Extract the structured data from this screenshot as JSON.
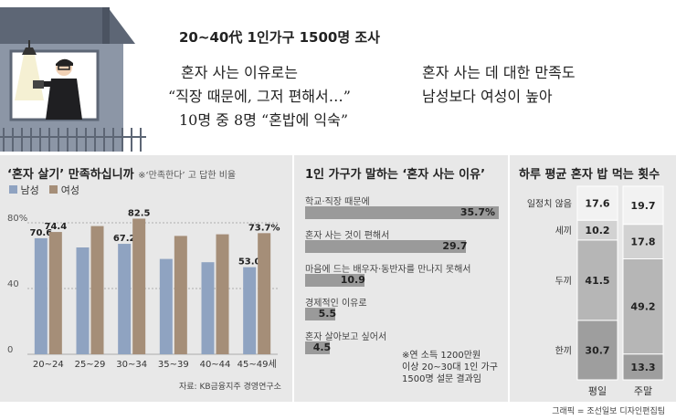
{
  "headline": "20~40代 1인가구 1500명 조사",
  "quotes": {
    "left_line1": "혼자 사는 이유로는",
    "left_line2": "“직장 때문에, 그저 편해서…”",
    "left_line3": "10명 중 8명 “혼밥에 익숙”",
    "right_line1": "혼자 사는 데 대한 만족도",
    "right_line2": "남성보다 여성이 높아"
  },
  "chart_data": [
    {
      "type": "bar",
      "title": "‘혼자 살기’ 만족하십니까",
      "subtitle": "※‘만족한다’ 고 답한 비율",
      "categories": [
        "20~24",
        "25~29",
        "30~34",
        "35~39",
        "40~44",
        "45~49세"
      ],
      "series": [
        {
          "name": "남성",
          "color": "#8fa3c1",
          "values": [
            70.6,
            65,
            67.2,
            58,
            56,
            53.0
          ]
        },
        {
          "name": "여성",
          "color": "#a58e78",
          "values": [
            74.4,
            78,
            82.5,
            72,
            73,
            73.7
          ]
        }
      ],
      "labels": {
        "남성": [
          "70.6",
          "",
          "67.2",
          "",
          "",
          "53.0"
        ],
        "여성": [
          "74.4",
          "",
          "82.5",
          "",
          "",
          "73.7%"
        ]
      },
      "yticks": [
        "0",
        "40",
        "80%"
      ],
      "ylim": [
        0,
        90
      ],
      "source": "자료: KB금융지주 경영연구소"
    },
    {
      "type": "bar",
      "orientation": "horizontal",
      "title": "1인 가구가 말하는 ‘혼자 사는 이유’",
      "categories": [
        "학교·직장 때문에",
        "혼자 사는 것이 편해서",
        "마음에 드는 배우자·동반자를 만나지 못해서",
        "경제적인 이유로",
        "혼자 살아보고 싶어서"
      ],
      "values": [
        35.7,
        29.7,
        10.9,
        5.5,
        4.5
      ],
      "value_labels": [
        "35.7%",
        "29.7",
        "10.9",
        "5.5",
        "4.5"
      ],
      "color": "#9a9a9a",
      "note": [
        "※연 소득 1200만원",
        "이상 20~30대 1인 가구",
        "1500명 설문 결과임"
      ]
    },
    {
      "type": "stacked-bar",
      "title": "하루 평균 혼자 밥 먹는 횟수",
      "categories": [
        "평일",
        "주말"
      ],
      "series": [
        {
          "name": "일정치 않음",
          "values": [
            17.6,
            19.7
          ]
        },
        {
          "name": "세끼",
          "values": [
            10.2,
            17.8
          ]
        },
        {
          "name": "두끼",
          "values": [
            41.5,
            49.2
          ]
        },
        {
          "name": "한끼",
          "values": [
            30.7,
            13.3
          ]
        }
      ]
    }
  ],
  "credit": "그래픽 = 조선일보 디자인편집팀"
}
